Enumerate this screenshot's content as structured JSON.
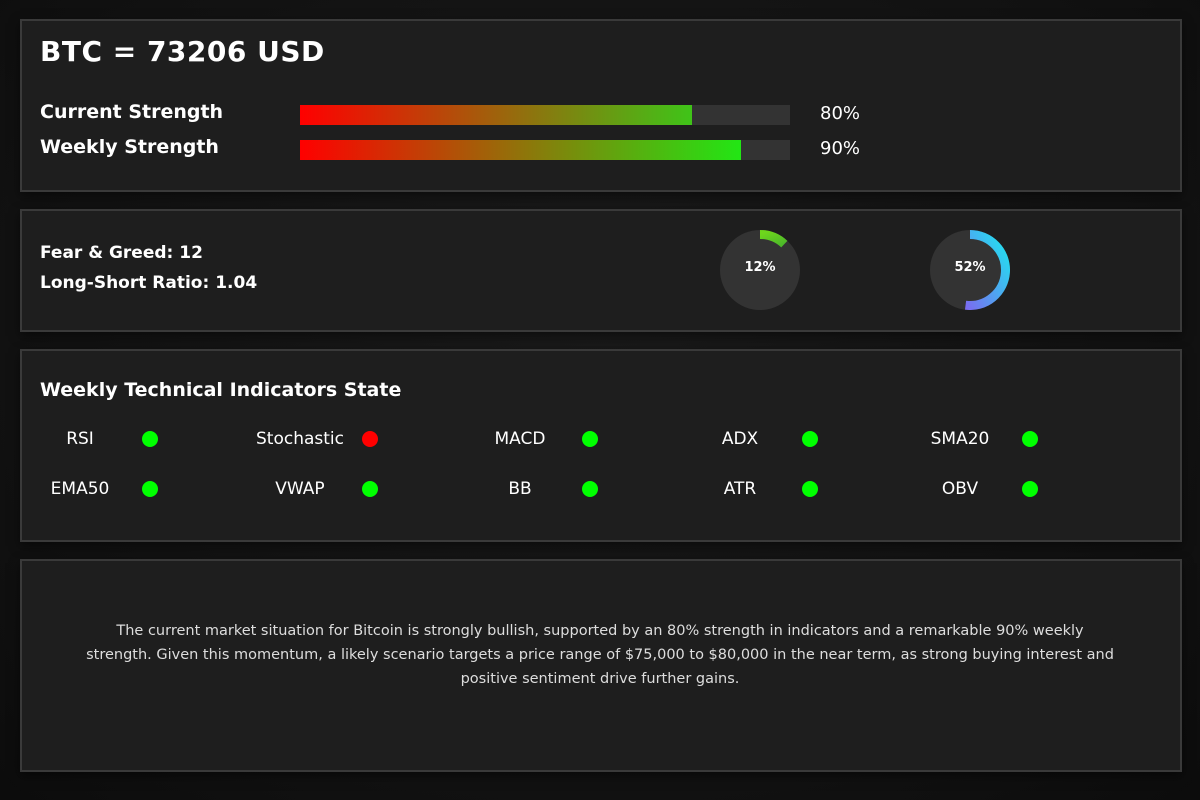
{
  "header": {
    "title": "BTC = 73206 USD"
  },
  "strength": [
    {
      "label": "Current Strength",
      "percent": 80,
      "percent_text": "80%",
      "color_start": "#ff0000",
      "color_end": "#3fc418"
    },
    {
      "label": "Weekly Strength",
      "percent": 90,
      "percent_text": "90%",
      "color_start": "#ff0000",
      "color_end": "#22e614"
    }
  ],
  "sentiment": {
    "fear_greed_text": "Fear & Greed: 12",
    "long_short_text": "Long-Short Ratio: 1.04",
    "gauges": [
      {
        "percent": 12,
        "label": "12%",
        "color_start": "#6ed61c",
        "color_end": "#4cb82a"
      },
      {
        "percent": 52,
        "label": "52%",
        "color_start": "#1ee6f0",
        "color_end": "#7a6cf0"
      }
    ]
  },
  "indicators": {
    "title": "Weekly Technical Indicators State",
    "items": [
      {
        "name": "RSI",
        "state": "bullish"
      },
      {
        "name": "Stochastic",
        "state": "bearish"
      },
      {
        "name": "MACD",
        "state": "bullish"
      },
      {
        "name": "ADX",
        "state": "bullish"
      },
      {
        "name": "SMA20",
        "state": "bullish"
      },
      {
        "name": "EMA50",
        "state": "bullish"
      },
      {
        "name": "VWAP",
        "state": "bullish"
      },
      {
        "name": "BB",
        "state": "bullish"
      },
      {
        "name": "ATR",
        "state": "bullish"
      },
      {
        "name": "OBV",
        "state": "bullish"
      }
    ],
    "colors": {
      "bullish": "#00ff00",
      "bearish": "#ff0000"
    }
  },
  "summary": {
    "text": "The current market situation for Bitcoin is strongly bullish, supported by an 80% strength in indicators and a remarkable 90% weekly strength. Given this momentum, a likely scenario targets a price range of $75,000 to $80,000 in the near term, as strong buying interest and positive sentiment drive further gains."
  }
}
